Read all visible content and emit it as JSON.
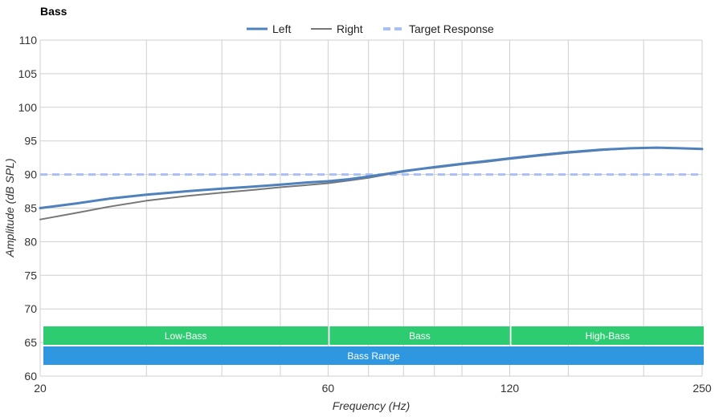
{
  "chart_data": {
    "type": "line",
    "title": "Bass",
    "xlabel": "Frequency (Hz)",
    "ylabel": "Amplitude (dB SPL)",
    "xscale": "log",
    "xlim": [
      20,
      250
    ],
    "ylim": [
      60,
      110
    ],
    "x_ticks": [
      "20",
      "60",
      "120",
      "250"
    ],
    "y_ticks": [
      "60",
      "65",
      "70",
      "75",
      "80",
      "85",
      "90",
      "95",
      "100",
      "105",
      "110"
    ],
    "grid": true,
    "legend_position": "top-center",
    "series": [
      {
        "name": "Left",
        "color": "#4f81bd",
        "style": "solid-thick",
        "x": [
          20,
          23,
          26,
          30,
          35,
          40,
          45,
          50,
          55,
          60,
          65,
          70,
          75,
          80,
          85,
          90,
          100,
          110,
          120,
          135,
          150,
          170,
          190,
          210,
          230,
          250
        ],
        "y": [
          85.0,
          85.7,
          86.4,
          87.0,
          87.5,
          87.9,
          88.2,
          88.5,
          88.8,
          89.0,
          89.3,
          89.7,
          90.1,
          90.5,
          90.8,
          91.1,
          91.6,
          92.0,
          92.4,
          92.9,
          93.3,
          93.7,
          93.9,
          94.0,
          93.9,
          93.8
        ]
      },
      {
        "name": "Right",
        "color": "#777777",
        "style": "solid",
        "x": [
          20,
          23,
          26,
          30,
          35,
          40,
          45,
          50,
          55,
          60,
          65,
          70,
          75,
          80,
          85,
          90,
          100,
          110,
          120,
          135,
          150,
          170,
          190,
          210,
          230,
          250
        ],
        "y": [
          83.3,
          84.3,
          85.2,
          86.1,
          86.8,
          87.3,
          87.7,
          88.1,
          88.4,
          88.7,
          89.1,
          89.5,
          90.0,
          90.4,
          90.8,
          91.0,
          91.5,
          91.9,
          92.3,
          92.8,
          93.2,
          93.6,
          93.9,
          94.0,
          93.9,
          93.8
        ]
      },
      {
        "name": "Target Response",
        "color": "#a9bff5",
        "style": "dashed",
        "x": [
          20,
          250
        ],
        "y": [
          90,
          90
        ]
      }
    ],
    "bands": [
      {
        "label": "Low-Bass",
        "from": 20,
        "to": 60,
        "color": "#2ecc71",
        "row": 1
      },
      {
        "label": "Bass",
        "from": 60,
        "to": 120,
        "color": "#2ecc71",
        "row": 1
      },
      {
        "label": "High-Bass",
        "from": 120,
        "to": 250,
        "color": "#2ecc71",
        "row": 1
      },
      {
        "label": "Bass Range",
        "from": 20,
        "to": 250,
        "color": "#2f97e0",
        "row": 2
      }
    ]
  }
}
